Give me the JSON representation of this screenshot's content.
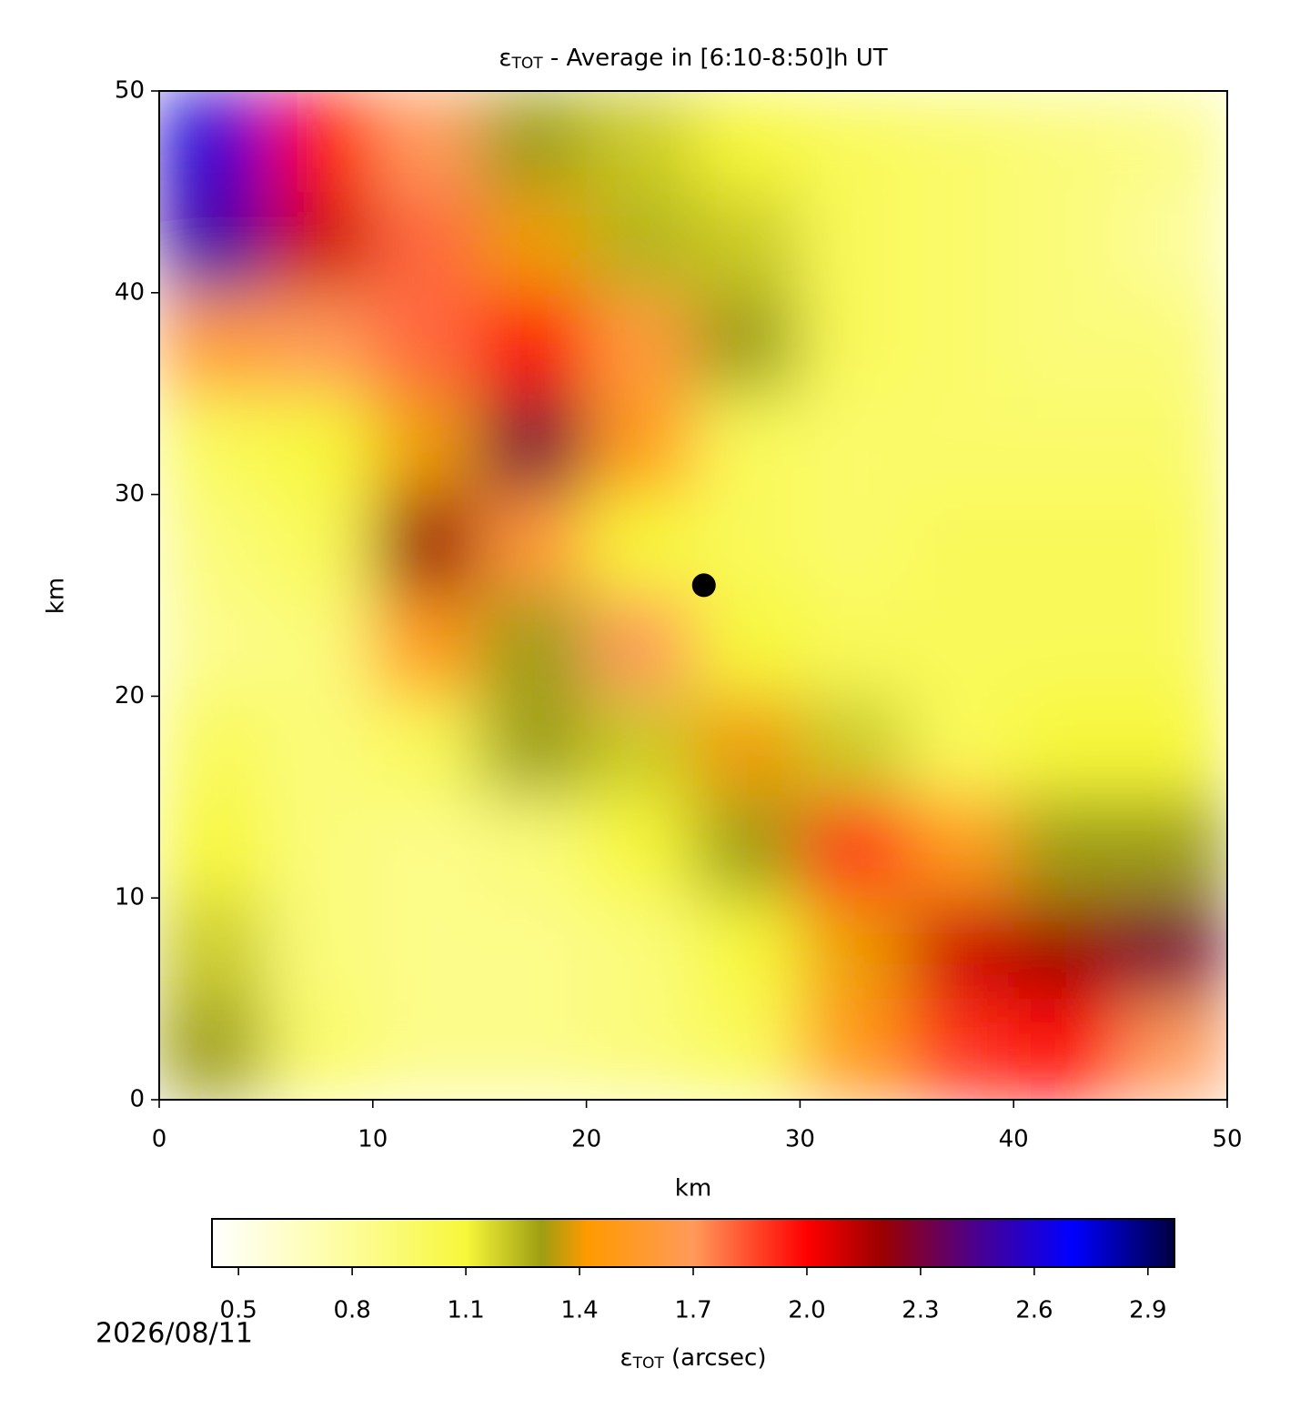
{
  "chart_data": {
    "type": "heatmap",
    "title": {
      "symbol": "ε",
      "subscript": "TOT",
      "text": " - Average in [6:10-8:50]h UT"
    },
    "xlabel": "km",
    "ylabel": "km",
    "xlim": [
      0,
      50
    ],
    "ylim": [
      0,
      50
    ],
    "xticks": [
      0,
      10,
      20,
      30,
      40,
      50
    ],
    "yticks": [
      0,
      10,
      20,
      30,
      40,
      50
    ],
    "x": [
      2.5,
      7.5,
      12.5,
      17.5,
      22.5,
      27.5,
      32.5,
      37.5,
      42.5,
      47.5
    ],
    "y": [
      47.5,
      42.5,
      37.5,
      32.5,
      27.5,
      22.5,
      17.5,
      12.5,
      7.5,
      2.5
    ],
    "z": [
      [
        2.6,
        2.0,
        1.7,
        1.3,
        1.2,
        1.1,
        1.0,
        0.95,
        0.9,
        0.85
      ],
      [
        2.5,
        2.1,
        1.8,
        1.4,
        1.25,
        1.2,
        1.0,
        0.95,
        0.9,
        0.8
      ],
      [
        1.6,
        1.7,
        1.8,
        2.0,
        1.6,
        1.3,
        1.0,
        0.95,
        0.9,
        0.9
      ],
      [
        1.0,
        1.1,
        1.4,
        2.3,
        1.5,
        1.0,
        0.95,
        0.95,
        0.95,
        0.95
      ],
      [
        0.9,
        1.0,
        2.2,
        1.6,
        1.1,
        1.0,
        0.95,
        1.0,
        1.0,
        1.0
      ],
      [
        0.85,
        0.9,
        1.5,
        1.3,
        1.7,
        1.1,
        1.0,
        1.0,
        1.0,
        1.0
      ],
      [
        1.0,
        0.9,
        1.0,
        1.3,
        1.2,
        1.4,
        1.2,
        1.0,
        1.1,
        1.1
      ],
      [
        1.1,
        0.9,
        0.85,
        0.9,
        1.1,
        1.3,
        1.9,
        1.5,
        1.3,
        1.3
      ],
      [
        1.2,
        0.9,
        0.85,
        0.85,
        0.9,
        1.1,
        1.4,
        2.1,
        2.2,
        2.3
      ],
      [
        1.3,
        0.95,
        0.85,
        0.85,
        0.9,
        1.0,
        1.5,
        1.9,
        2.0,
        1.7
      ]
    ],
    "marker": {
      "x": 25.5,
      "y": 25.5,
      "color": "#000000"
    },
    "colormap": [
      [
        0.43,
        "#ffffff"
      ],
      [
        0.8,
        "#fdfd9a"
      ],
      [
        1.1,
        "#f7f73a"
      ],
      [
        1.3,
        "#9d9d12"
      ],
      [
        1.42,
        "#ff9a00"
      ],
      [
        1.7,
        "#ff9a5a"
      ],
      [
        2.0,
        "#ff0000"
      ],
      [
        2.2,
        "#9a0000"
      ],
      [
        2.45,
        "#4a0090"
      ],
      [
        2.7,
        "#0000ff"
      ],
      [
        2.97,
        "#000040"
      ]
    ],
    "colorbar": {
      "label": {
        "symbol": "ε",
        "subscript": "TOT",
        "text": " (arcsec)"
      },
      "lim": [
        0.43,
        2.97
      ],
      "ticks": [
        0.5,
        0.8,
        1.1,
        1.4,
        1.7,
        {
          "value": 2,
          "label": "2.0"
        },
        2.3,
        2.6,
        2.9
      ]
    },
    "date": "2026/08/11"
  }
}
